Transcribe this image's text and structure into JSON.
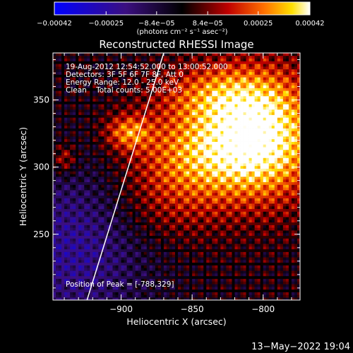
{
  "chart_data": {
    "type": "heatmap",
    "title": "Reconstructed RHESSI Image",
    "info": {
      "time": "19-Aug-2012 12:54:52.000 to 13:00:52.000",
      "detectors": "Detectors: 3F 5F 6F 7F 8F, Att 0",
      "energy": "Energy Range: 12.0 - 25.0 keV",
      "clean": "Clean    Total counts: 5.00E+03",
      "peak": "Position of Peak = [-788,329]"
    },
    "xlabel": "Heliocentric X (arcsec)",
    "ylabel": "Heliocentric Y (arcsec)",
    "xlim": [
      -948,
      -774
    ],
    "ylim": [
      201,
      385
    ],
    "xticks": [
      {
        "value": -900,
        "label": "−900"
      },
      {
        "value": -850,
        "label": "−850"
      },
      {
        "value": -800,
        "label": "−800"
      }
    ],
    "yticks": [
      {
        "value": 250,
        "label": "250"
      },
      {
        "value": 300,
        "label": "300"
      },
      {
        "value": 350,
        "label": "350"
      }
    ],
    "colorbar": {
      "range": [
        -0.00042,
        0.00042
      ],
      "unit": "(photons cm⁻² s⁻¹ asec⁻²)",
      "ticks": [
        {
          "value": -0.00042,
          "label": "−0.00042"
        },
        {
          "value": -0.00025,
          "label": "−0.00025"
        },
        {
          "value": -8.4e-05,
          "label": "−8.4e−05"
        },
        {
          "value": 8.4e-05,
          "label": "8.4e−05"
        },
        {
          "value": 0.00025,
          "label": "0.00025"
        },
        {
          "value": 0.00042,
          "label": "0.00042"
        }
      ]
    },
    "limb_line": [
      [
        -924,
        201
      ],
      [
        -870,
        385
      ]
    ],
    "peak": {
      "x": -788,
      "y": 329
    },
    "emission_sources": [
      {
        "x": -800,
        "y": 323,
        "sx": 30,
        "sy": 33,
        "amp": 0.00042
      },
      {
        "x": -848,
        "y": 310,
        "sx": 34,
        "sy": 24,
        "amp": 0.00025
      },
      {
        "x": -832,
        "y": 355,
        "sx": 30,
        "sy": 16,
        "amp": 0.00019
      },
      {
        "x": -895,
        "y": 326,
        "sx": 11,
        "sy": 9,
        "amp": 0.00024
      },
      {
        "x": -940,
        "y": 306,
        "sx": 6,
        "sy": 8,
        "amp": 0.00017
      },
      {
        "x": -870,
        "y": 270,
        "sx": 28,
        "sy": 22,
        "amp": 0.00011
      }
    ],
    "negative_region": {
      "x": -935,
      "y": 240,
      "sx": 40,
      "sy": 45,
      "amp": -0.00021
    },
    "ripple_amplitude": 0.00012,
    "ripple_period_arcsec": 10
  },
  "timestamp": "13−May−2022 19:04",
  "colors": {
    "background": "#000000",
    "foreground": "#ffffff"
  }
}
